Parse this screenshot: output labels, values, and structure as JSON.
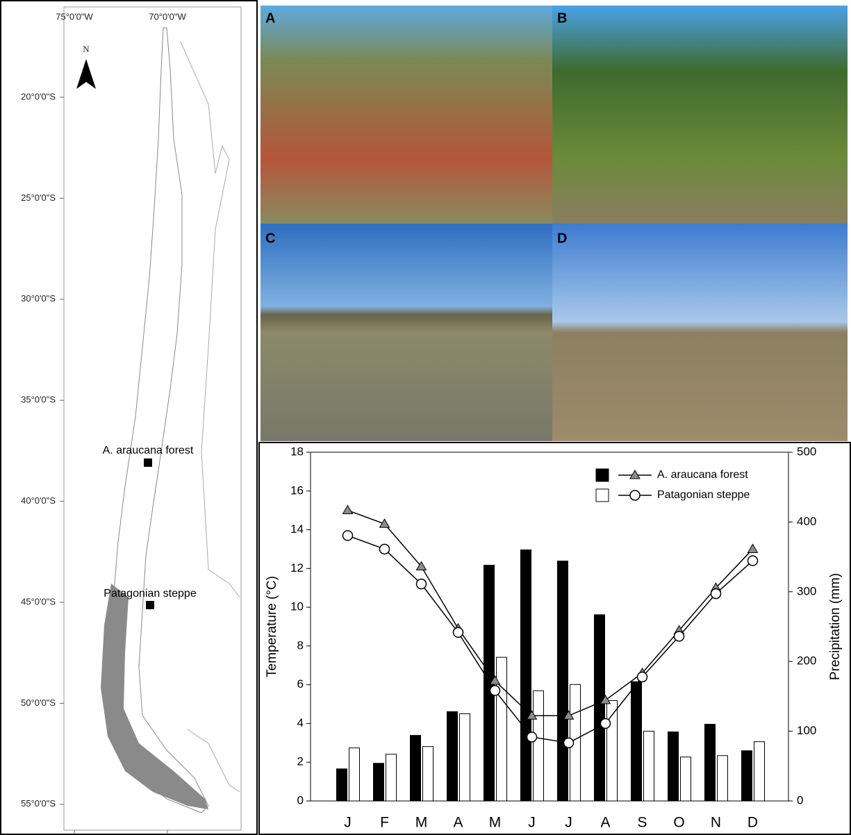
{
  "map": {
    "lon_labels": [
      "75°0'0\"W",
      "70°0'0\"W"
    ],
    "lat_labels": [
      "20°0'0\"S",
      "25°0'0\"S",
      "30°0'0\"S",
      "35°0'0\"S",
      "40°0'0\"S",
      "45°0'0\"S",
      "50°0'0\"S",
      "55°0'0\"S"
    ],
    "north": "N",
    "sites": [
      "A. araucana forest",
      "Patagonian steppe"
    ]
  },
  "photos": [
    "A",
    "B",
    "C",
    "D"
  ],
  "chart_data": {
    "type": "bar-line",
    "categories": [
      "J",
      "F",
      "M",
      "A",
      "M",
      "J",
      "J",
      "A",
      "S",
      "O",
      "N",
      "D"
    ],
    "y_label": "Temperature (°C)",
    "y2_label": "Precipitation (mm)",
    "ylim": [
      0,
      18
    ],
    "yticks": [
      0,
      2,
      4,
      6,
      8,
      10,
      12,
      14,
      16,
      18
    ],
    "y2lim": [
      0,
      500
    ],
    "y2ticks": [
      0,
      100,
      200,
      300,
      400,
      500
    ],
    "series": [
      {
        "name": "A. araucana forest",
        "color": "#8c8c8c",
        "bar_color": "#000000",
        "values": [
          15.0,
          14.3,
          12.1,
          8.9,
          6.2,
          4.4,
          4.4,
          5.2,
          6.6,
          8.8,
          11.0,
          13.0
        ],
        "precipitation": [
          46,
          54,
          94,
          128,
          338,
          360,
          344,
          267,
          171,
          99,
          110,
          72
        ]
      },
      {
        "name": "Patagonian steppe",
        "color": "#ffffff",
        "bar_color": "#ffffff",
        "values": [
          13.7,
          13.0,
          11.2,
          8.7,
          5.7,
          3.3,
          3.0,
          4.0,
          6.4,
          8.5,
          10.7,
          12.4
        ],
        "precipitation": [
          76,
          67,
          78,
          125,
          206,
          158,
          167,
          144,
          100,
          63,
          65,
          85
        ]
      }
    ]
  }
}
